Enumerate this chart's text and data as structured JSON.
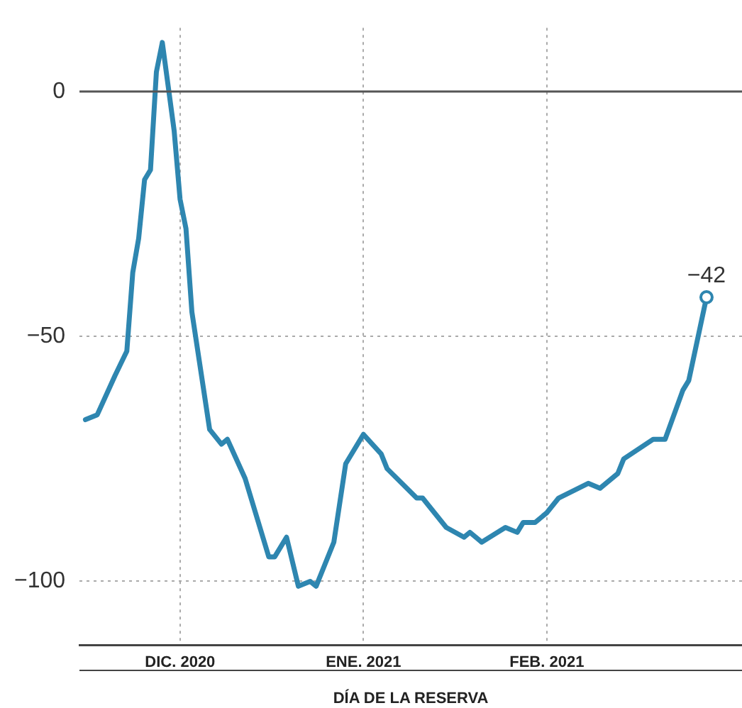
{
  "chart_data": {
    "type": "line",
    "xlabel": "DÍA DE LA RESERVA",
    "x": [
      "2020-11-15",
      "2020-11-17",
      "2020-11-20",
      "2020-11-22",
      "2020-11-23",
      "2020-11-24",
      "2020-11-25",
      "2020-11-26",
      "2020-11-27",
      "2020-11-28",
      "2020-11-29",
      "2020-11-30",
      "2020-12-01",
      "2020-12-02",
      "2020-12-03",
      "2020-12-06",
      "2020-12-08",
      "2020-12-09",
      "2020-12-12",
      "2020-12-16",
      "2020-12-17",
      "2020-12-19",
      "2020-12-21",
      "2020-12-23",
      "2020-12-24",
      "2020-12-27",
      "2020-12-29",
      "2021-01-01",
      "2021-01-04",
      "2021-01-05",
      "2021-01-10",
      "2021-01-11",
      "2021-01-15",
      "2021-01-18",
      "2021-01-19",
      "2021-01-21",
      "2021-01-25",
      "2021-01-27",
      "2021-01-28",
      "2021-01-30",
      "2021-02-01",
      "2021-02-03",
      "2021-02-08",
      "2021-02-10",
      "2021-02-13",
      "2021-02-14",
      "2021-02-19",
      "2021-02-21",
      "2021-02-24",
      "2021-02-25",
      "2021-02-28"
    ],
    "series": [
      {
        "color": "#2e86b0",
        "values": [
          -67,
          -66,
          -58,
          -53,
          -37,
          -30,
          -18,
          -16,
          4,
          10,
          1,
          -8,
          -22,
          -28,
          -45,
          -69,
          -72,
          -71,
          -79,
          -95,
          -95,
          -91,
          -101,
          -100,
          -101,
          -92,
          -76,
          -70,
          -74,
          -77,
          -83,
          -83,
          -89,
          -91,
          -90,
          -92,
          -89,
          -90,
          -88,
          -88,
          -86,
          -83,
          -80,
          -81,
          -78,
          -75,
          -71,
          -71,
          -61,
          -59,
          -42
        ]
      }
    ],
    "xlim": [
      "2020-11-14",
      "2021-03-06"
    ],
    "xticks": [
      {
        "value": "2020-12-01",
        "label": "DIC. 2020"
      },
      {
        "value": "2021-01-01",
        "label": "ENE. 2021"
      },
      {
        "value": "2021-02-01",
        "label": "FEB. 2021"
      }
    ],
    "ylim": [
      -113,
      13
    ],
    "yticks": [
      {
        "value": -100,
        "label": "−100"
      },
      {
        "value": -50,
        "label": "−50"
      },
      0
    ],
    "grid": true,
    "legend": false,
    "marker": "none",
    "line_style": "solid",
    "ref_lines": [
      {
        "axis": "y",
        "value": 0,
        "color": "#555555",
        "line_style": "solid"
      }
    ],
    "annotations": [
      {
        "text": "−42",
        "x": "2021-02-28",
        "y": -42
      }
    ]
  }
}
